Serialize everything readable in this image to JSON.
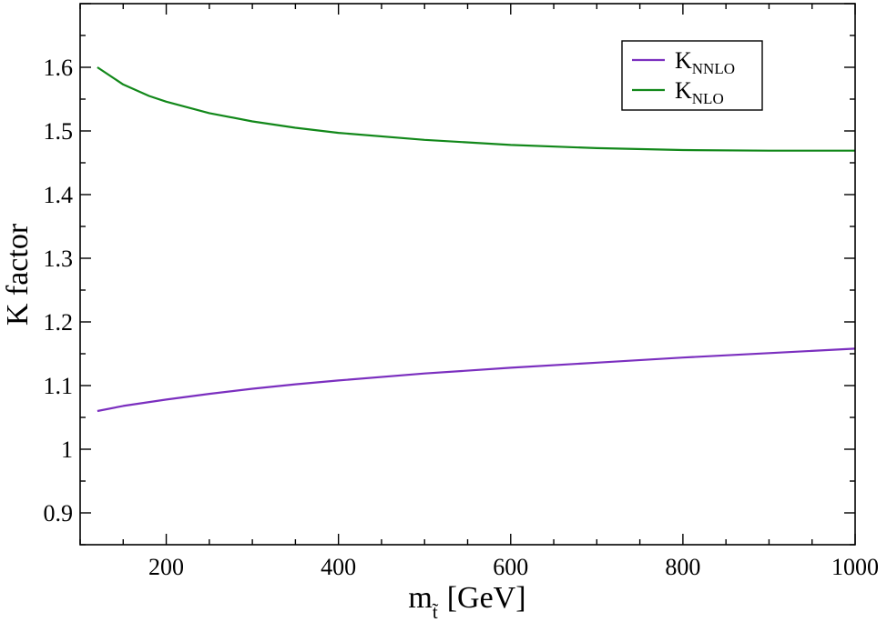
{
  "chart_data": {
    "type": "line",
    "xlabel_main": "m",
    "xlabel_sub": "t̃",
    "xlabel_unit": "[GeV]",
    "ylabel": "K factor",
    "xlim": [
      100,
      1000
    ],
    "ylim": [
      0.85,
      1.7
    ],
    "xticks": [
      200,
      400,
      600,
      800,
      1000
    ],
    "yticks": [
      0.9,
      1,
      1.1,
      1.2,
      1.3,
      1.4,
      1.5,
      1.6
    ],
    "ytick_labels": [
      "0.9",
      "1",
      "1.1",
      "1.2",
      "1.3",
      "1.4",
      "1.5",
      "1.6"
    ],
    "grid": false,
    "legend_position": "top-right",
    "series": [
      {
        "name": "K",
        "name_sub": "NNLO",
        "color": "#7b2fbf",
        "x": [
          120,
          150,
          200,
          250,
          300,
          350,
          400,
          500,
          600,
          700,
          800,
          900,
          1000
        ],
        "y": [
          1.06,
          1.068,
          1.078,
          1.087,
          1.095,
          1.102,
          1.108,
          1.119,
          1.128,
          1.136,
          1.144,
          1.151,
          1.158
        ]
      },
      {
        "name": "K",
        "name_sub": "NLO",
        "color": "#12881a",
        "x": [
          120,
          150,
          180,
          200,
          250,
          300,
          350,
          400,
          500,
          600,
          700,
          800,
          900,
          1000
        ],
        "y": [
          1.6,
          1.573,
          1.555,
          1.546,
          1.528,
          1.515,
          1.505,
          1.497,
          1.486,
          1.478,
          1.473,
          1.47,
          1.469,
          1.469
        ]
      }
    ]
  }
}
